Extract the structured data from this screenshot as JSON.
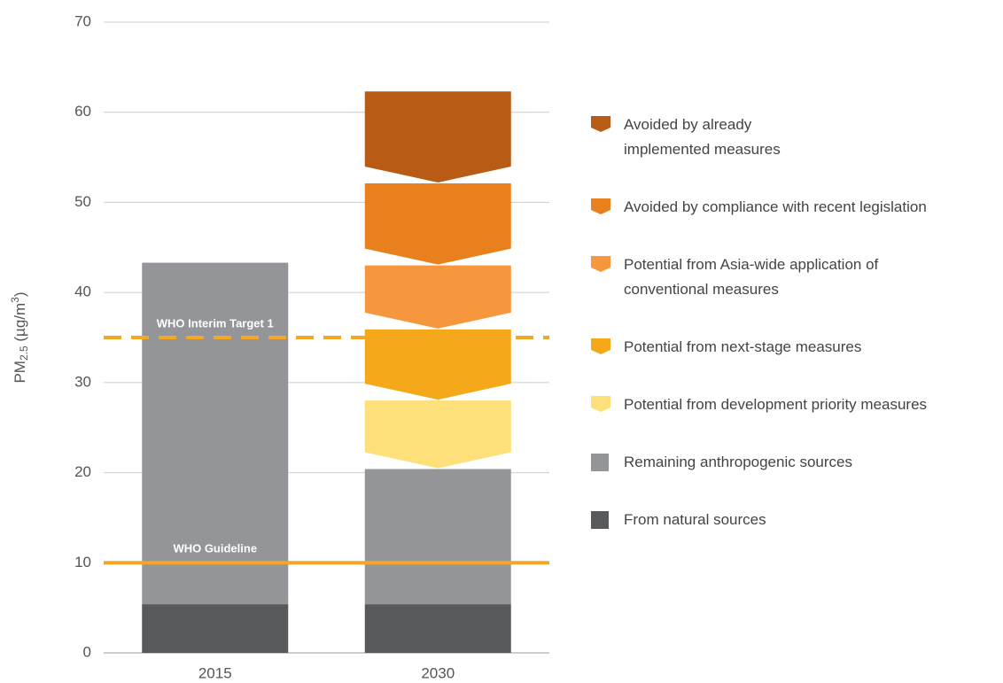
{
  "chart_data": {
    "type": "stacked-bar",
    "y_label": [
      "PM",
      "2.5",
      " (µg/m",
      "3",
      ")"
    ],
    "categories": [
      "2015",
      "2030"
    ],
    "series": [
      {
        "name": "Avoided by already\nimplemented measures",
        "color": "#b85b14",
        "shape": "chevron",
        "values": [
          null,
          10.2
        ]
      },
      {
        "name": "Avoided by compliance with recent legislation",
        "color": "#e8801d",
        "shape": "chevron",
        "values": [
          null,
          9.1
        ]
      },
      {
        "name": "Potential from Asia-wide application of\nconventional measures",
        "color": "#f7973d",
        "shape": "chevron",
        "values": [
          null,
          7.1
        ]
      },
      {
        "name": "Potential from next-stage measures",
        "color": "#f5a91a",
        "shape": "chevron",
        "values": [
          null,
          7.9
        ]
      },
      {
        "name": "Potential from development priority measures",
        "color": "#fde07a",
        "shape": "chevron",
        "values": [
          null,
          7.6
        ]
      },
      {
        "name": "Remaining anthropogenic sources",
        "color": "#939598",
        "shape": "rect",
        "values": [
          38.0,
          15.1
        ]
      },
      {
        "name": "From natural sources",
        "color": "#58595b",
        "shape": "rect",
        "values": [
          5.4,
          5.4
        ]
      }
    ],
    "reference_lines": [
      {
        "label": "WHO Interim Target 1",
        "value": 35,
        "color": "#f5a623",
        "style": "dashed"
      },
      {
        "label": "WHO Guideline",
        "value": 10,
        "color": "#f5a623",
        "style": "solid"
      }
    ],
    "ylim": [
      0,
      70
    ],
    "yticks": [
      0,
      10,
      20,
      30,
      40,
      50,
      60,
      70
    ],
    "grid": true,
    "legend": "right"
  }
}
